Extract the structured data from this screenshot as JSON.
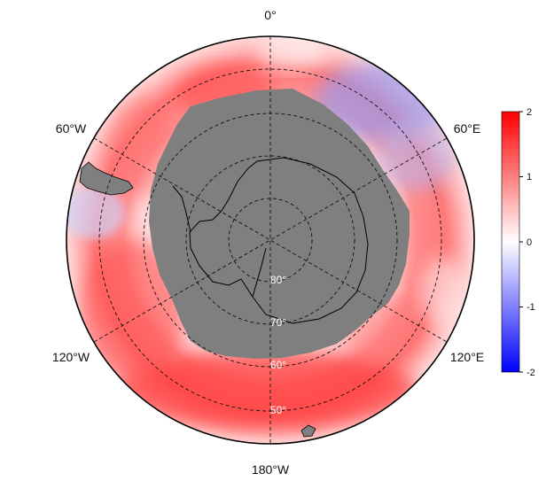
{
  "map": {
    "projection": "south polar stereographic",
    "longitude_labels": {
      "top": "0°",
      "upper_left": "60°W",
      "upper_right": "60°E",
      "lower_left": "120°W",
      "lower_right": "120°E",
      "bottom": "180°W"
    },
    "latitude_labels": [
      "80°",
      "70°",
      "60°",
      "50°"
    ],
    "latitude_circles_deg": [
      -80,
      -70,
      -60,
      -50
    ],
    "meridians_deg": [
      0,
      60,
      120,
      180,
      240,
      300
    ],
    "land_color": "#7f7f7f",
    "coastline_color": "#000000",
    "gridline_style": "dashed"
  },
  "colorbar": {
    "colormap": "blue-white-red",
    "min": -2,
    "max": 2,
    "ticks": [
      "2",
      "1",
      "0",
      "-1",
      "-2"
    ],
    "colors": {
      "high": "#ff0000",
      "mid": "#ffffff",
      "low": "#0000ff"
    }
  }
}
